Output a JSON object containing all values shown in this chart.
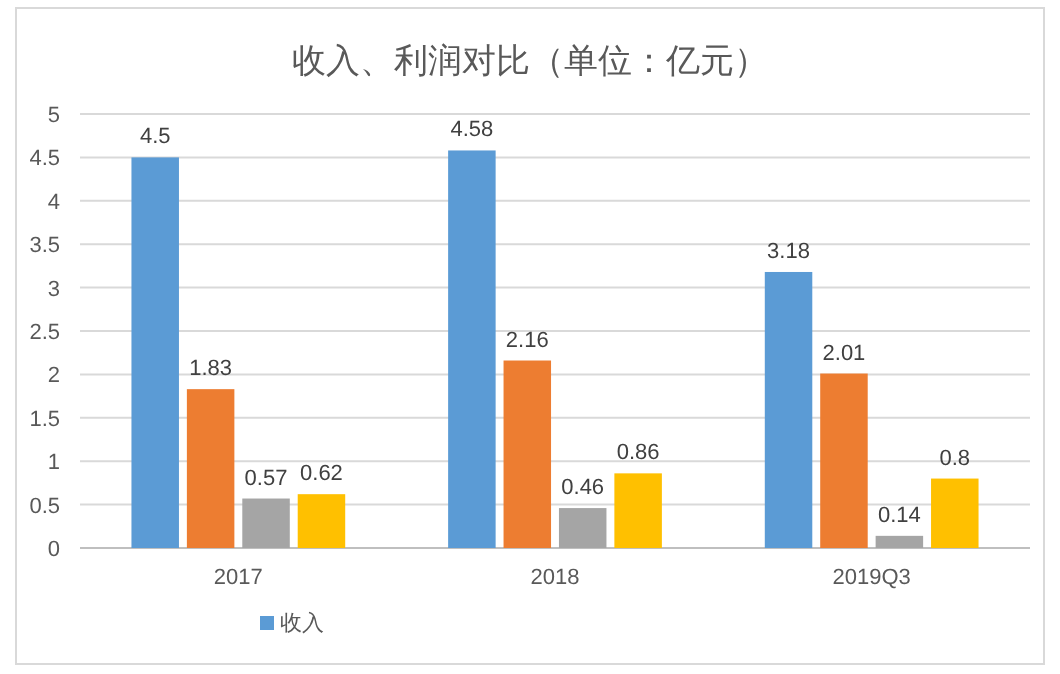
{
  "chart_data": {
    "type": "bar",
    "title": "收入、利润对比（单位：亿元）",
    "categories": [
      "2017",
      "2018",
      "2019Q3"
    ],
    "series": [
      {
        "name": "收入",
        "color": "#5b9bd5",
        "values": [
          4.5,
          4.58,
          3.18
        ]
      },
      {
        "color": "#ed7d31",
        "values": [
          1.83,
          2.16,
          2.01
        ]
      },
      {
        "color": "#a5a5a5",
        "values": [
          0.57,
          0.46,
          0.14
        ]
      },
      {
        "color": "#ffc000",
        "values": [
          0.62,
          0.86,
          0.8
        ]
      }
    ],
    "ylim": [
      0,
      5
    ],
    "yticks": [
      0,
      0.5,
      1,
      1.5,
      2,
      2.5,
      3,
      3.5,
      4,
      4.5,
      5
    ],
    "grid": "y",
    "legend": "bottom",
    "data_labels": true
  }
}
